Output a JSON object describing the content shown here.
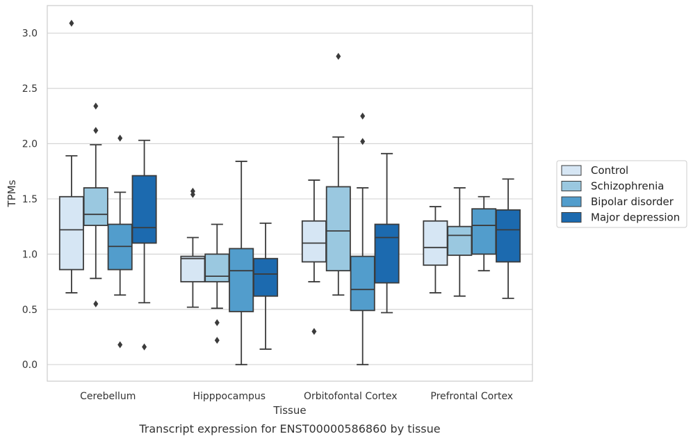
{
  "chart_data": {
    "type": "box",
    "caption": "Transcript expression for ENST00000586860 by tissue",
    "xlabel": "Tissue",
    "ylabel": "TPMs",
    "ylim": [
      -0.15,
      3.25
    ],
    "yticks": [
      0.0,
      0.5,
      1.0,
      1.5,
      2.0,
      2.5,
      3.0
    ],
    "ytick_labels": [
      "0.0",
      "0.5",
      "1.0",
      "1.5",
      "2.0",
      "2.5",
      "3.0"
    ],
    "grid": "horizontal",
    "legend_position": "right",
    "categories": [
      "Cerebellum",
      "Hipppocampus",
      "Orbitofontal Cortex",
      "Prefrontal Cortex"
    ],
    "series": [
      {
        "name": "Control",
        "color": "#d6e6f4",
        "boxes": [
          {
            "whisker_low": 0.65,
            "q1": 0.86,
            "median": 1.22,
            "q3": 1.52,
            "whisker_high": 1.89,
            "outliers": [
              3.09
            ]
          },
          {
            "whisker_low": 0.52,
            "q1": 0.75,
            "median": 0.96,
            "q3": 0.98,
            "whisker_high": 1.15,
            "outliers": [
              1.54,
              1.57
            ]
          },
          {
            "whisker_low": 0.75,
            "q1": 0.93,
            "median": 1.1,
            "q3": 1.3,
            "whisker_high": 1.67,
            "outliers": [
              0.3
            ]
          },
          {
            "whisker_low": 0.65,
            "q1": 0.9,
            "median": 1.06,
            "q3": 1.3,
            "whisker_high": 1.43,
            "outliers": []
          }
        ]
      },
      {
        "name": "Schizophrenia",
        "color": "#9ac8e0",
        "boxes": [
          {
            "whisker_low": 0.78,
            "q1": 1.26,
            "median": 1.36,
            "q3": 1.6,
            "whisker_high": 1.99,
            "outliers": [
              0.55,
              2.12,
              2.34
            ]
          },
          {
            "whisker_low": 0.51,
            "q1": 0.75,
            "median": 0.8,
            "q3": 1.0,
            "whisker_high": 1.27,
            "outliers": [
              0.22,
              0.38
            ]
          },
          {
            "whisker_low": 0.63,
            "q1": 0.85,
            "median": 1.21,
            "q3": 1.61,
            "whisker_high": 2.06,
            "outliers": [
              2.79
            ]
          },
          {
            "whisker_low": 0.62,
            "q1": 0.99,
            "median": 1.17,
            "q3": 1.25,
            "whisker_high": 1.6,
            "outliers": []
          }
        ]
      },
      {
        "name": "Bipolar disorder",
        "color": "#529dcc",
        "boxes": [
          {
            "whisker_low": 0.63,
            "q1": 0.86,
            "median": 1.07,
            "q3": 1.27,
            "whisker_high": 1.56,
            "outliers": [
              0.18,
              2.05
            ]
          },
          {
            "whisker_low": 0.0,
            "q1": 0.48,
            "median": 0.85,
            "q3": 1.05,
            "whisker_high": 1.84,
            "outliers": []
          },
          {
            "whisker_low": 0.0,
            "q1": 0.49,
            "median": 0.68,
            "q3": 0.98,
            "whisker_high": 1.6,
            "outliers": [
              2.02,
              2.25
            ]
          },
          {
            "whisker_low": 0.85,
            "q1": 1.0,
            "median": 1.26,
            "q3": 1.41,
            "whisker_high": 1.52,
            "outliers": []
          }
        ]
      },
      {
        "name": "Major depression",
        "color": "#1c6aaf",
        "boxes": [
          {
            "whisker_low": 0.56,
            "q1": 1.1,
            "median": 1.24,
            "q3": 1.71,
            "whisker_high": 2.03,
            "outliers": [
              0.16
            ]
          },
          {
            "whisker_low": 0.14,
            "q1": 0.62,
            "median": 0.82,
            "q3": 0.96,
            "whisker_high": 1.28,
            "outliers": []
          },
          {
            "whisker_low": 0.47,
            "q1": 0.74,
            "median": 1.15,
            "q3": 1.27,
            "whisker_high": 1.91,
            "outliers": []
          },
          {
            "whisker_low": 0.6,
            "q1": 0.93,
            "median": 1.22,
            "q3": 1.4,
            "whisker_high": 1.68,
            "outliers": []
          }
        ]
      }
    ]
  }
}
